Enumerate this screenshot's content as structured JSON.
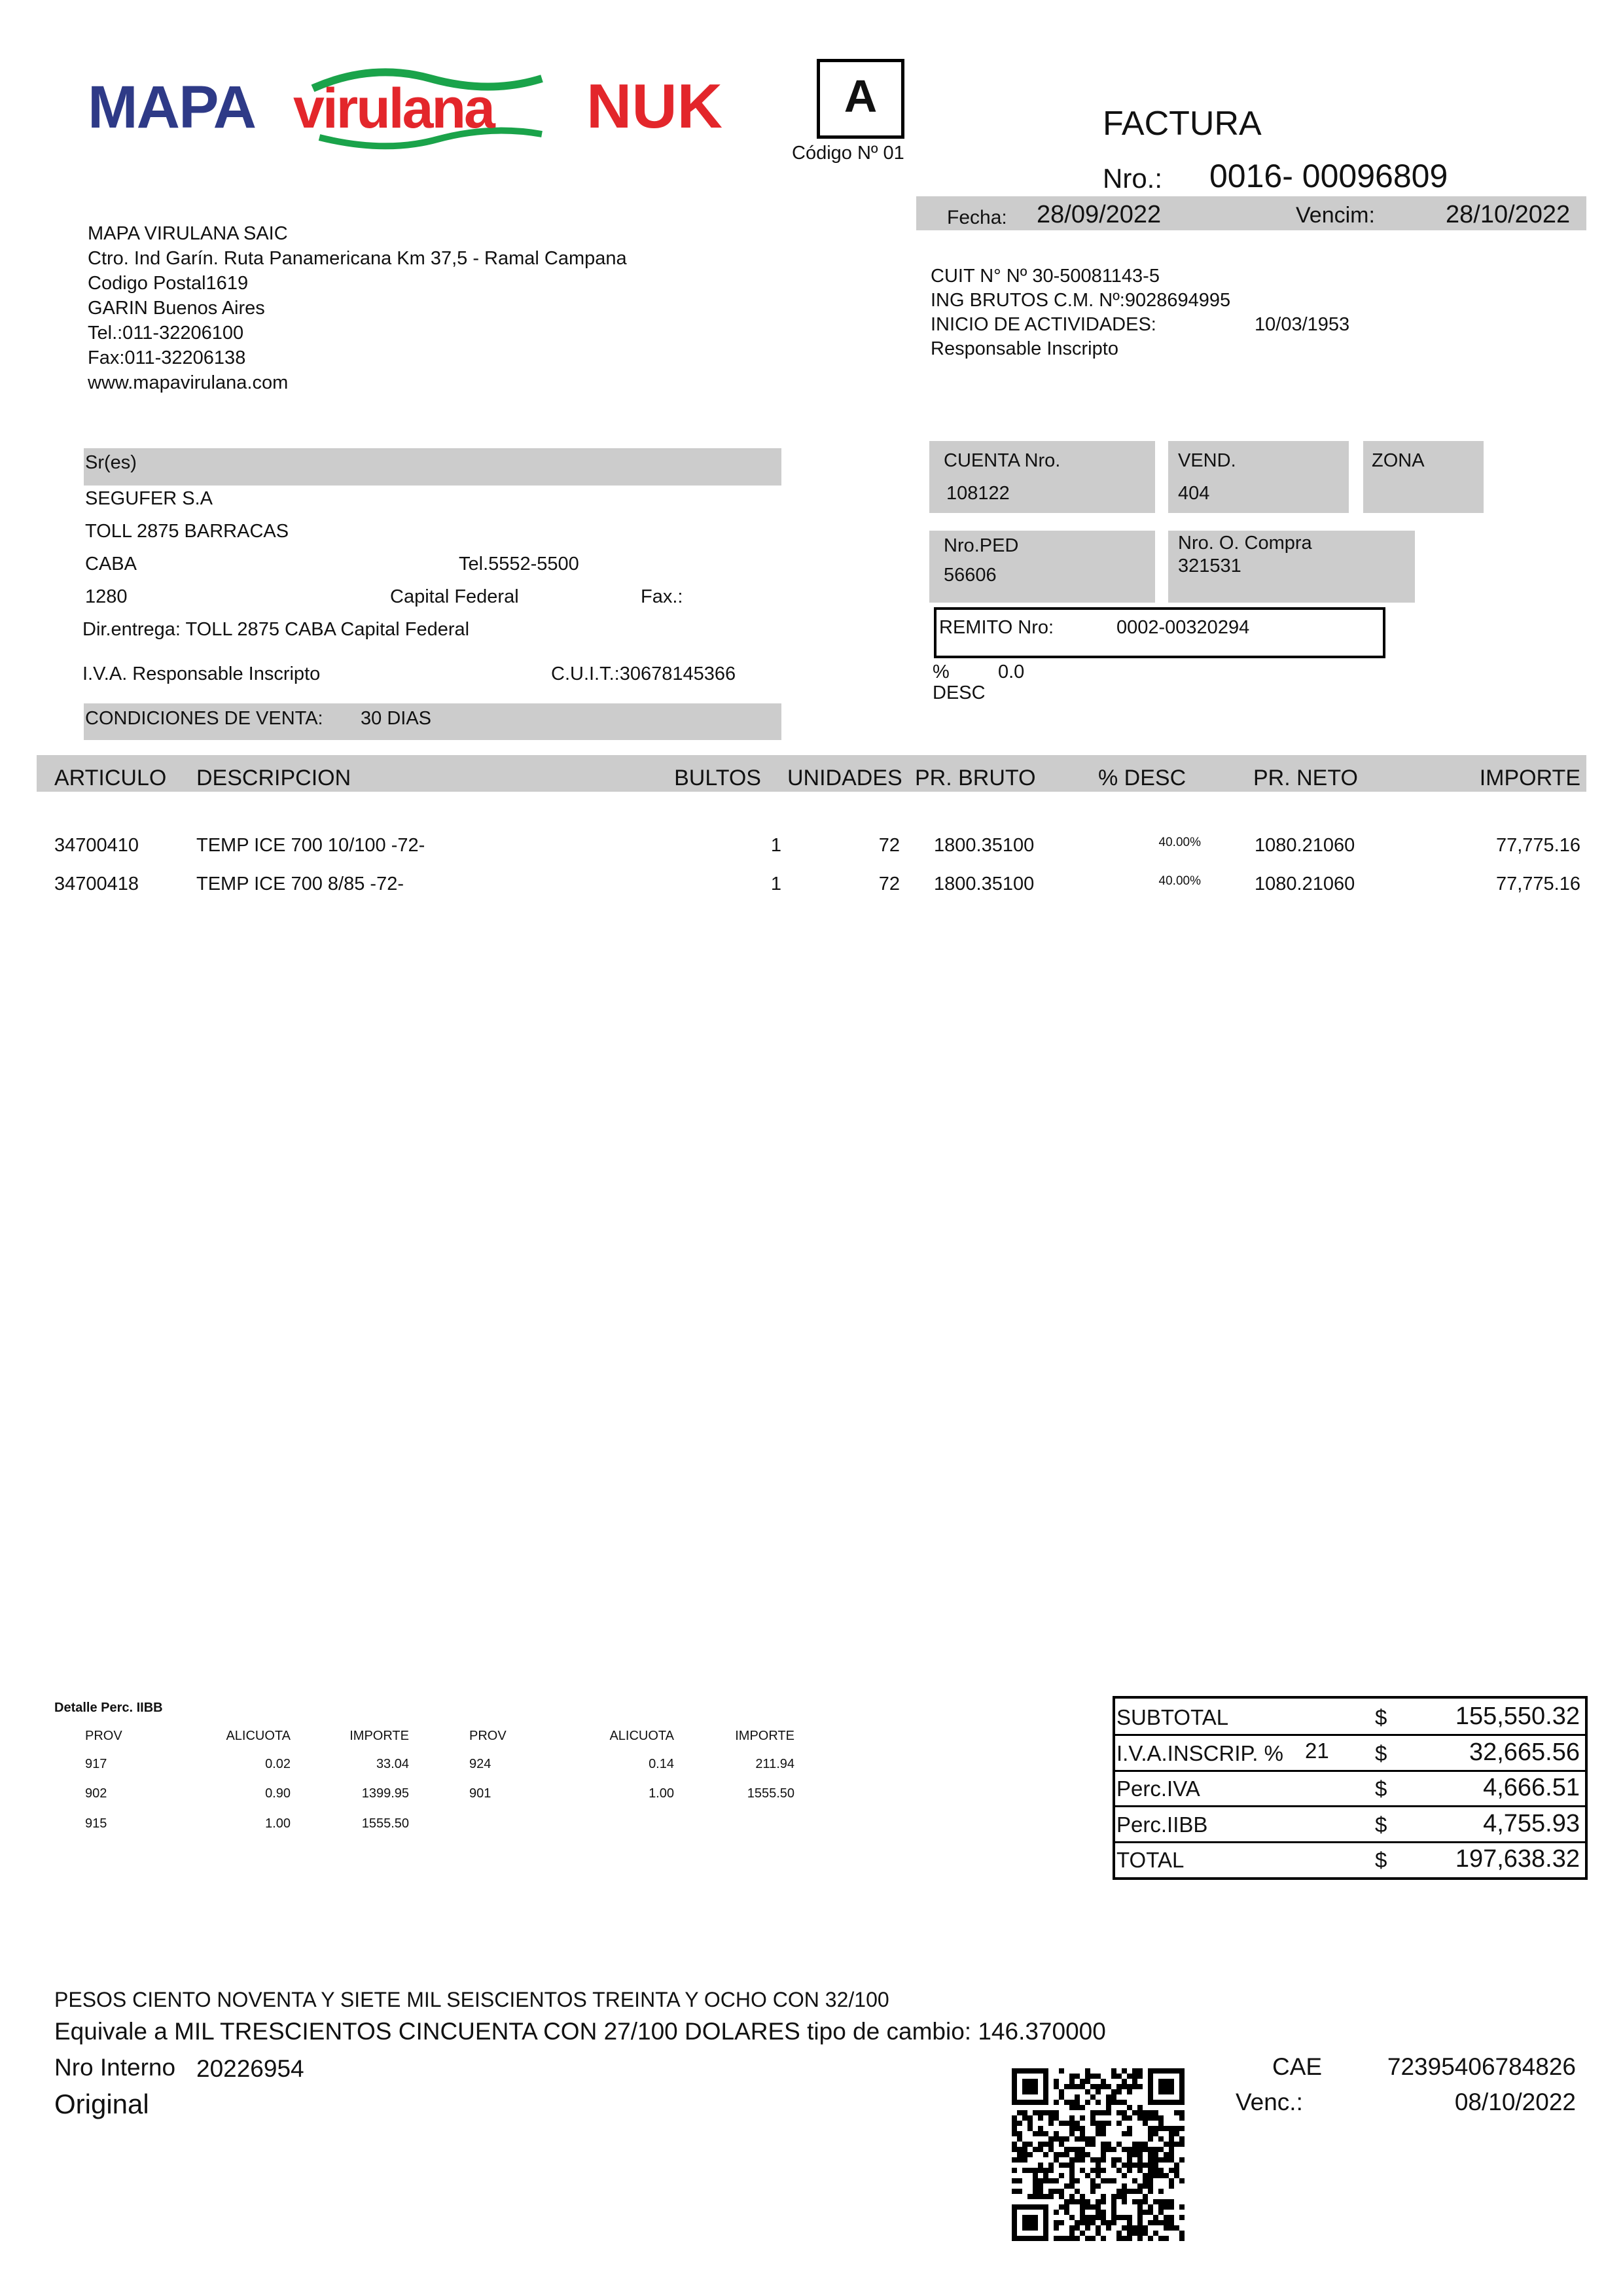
{
  "brand": {
    "logos": [
      "MAPA",
      "virulana",
      "NUK"
    ],
    "colors": {
      "mapa": "#2e3a87",
      "virulana": "#e3262b",
      "wave": "#1aa34a",
      "nuk": "#e3262b",
      "band": "#cccccc"
    }
  },
  "doc_type": {
    "letter": "A",
    "code": "Código Nº 01"
  },
  "header": {
    "title": "FACTURA",
    "number_label": "Nro.:",
    "number_prefix": "0016-",
    "number": "00096809",
    "fecha_label": "Fecha:",
    "fecha": "28/09/2022",
    "vencim_label": "Vencim:",
    "vencim": "28/10/2022"
  },
  "company": {
    "lines": [
      "MAPA VIRULANA SAIC",
      "Ctro. Ind Garín. Ruta Panamericana Km 37,5 - Ramal Campana",
      "Codigo Postal1619",
      "GARIN Buenos Aires",
      "Tel.:011-32206100",
      "Fax:011-32206138",
      "www.mapavirulana.com"
    ],
    "cuit": "CUIT N° Nº 30-50081143-5",
    "ing_brutos": "ING BRUTOS C.M. Nº:9028694995",
    "inicio_label": "INICIO DE ACTIVIDADES:",
    "inicio": "10/03/1953",
    "condicion": "Responsable Inscripto"
  },
  "customer": {
    "label": "Sr(es)",
    "name": "SEGUFER S.A",
    "address": "TOLL 2875 BARRACAS",
    "city": "CABA",
    "tel": "Tel.5552-5500",
    "postal": "1280",
    "province": "Capital Federal",
    "fax": "Fax.:",
    "delivery": "Dir.entrega: TOLL 2875 CABA Capital Federal",
    "iva": "I.V.A.  Responsable Inscripto",
    "cuit": "C.U.I.T.:30678145366",
    "conditions_label": "CONDICIONES DE VENTA:",
    "conditions": "30 DIAS"
  },
  "refs": {
    "cuenta_label": "CUENTA Nro.",
    "cuenta": "108122",
    "vend_label": "VEND.",
    "vend": "404",
    "zona_label": "ZONA",
    "ped_label": "Nro.PED",
    "ped": "56606",
    "compra_label": "Nro. O. Compra",
    "compra": "321531",
    "remito_label": "REMITO Nro:",
    "remito": "0002-00320294",
    "desc_label_1": "%",
    "desc_label_2": "DESC",
    "desc": "0.0"
  },
  "items": {
    "headers": [
      "ARTICULO",
      "DESCRIPCION",
      "BULTOS",
      "UNIDADES",
      "PR. BRUTO",
      "% DESC",
      "PR. NETO",
      "IMPORTE"
    ],
    "rows": [
      [
        "34700410",
        "TEMP ICE 700 10/100 -72-",
        "1",
        "72",
        "1800.35100",
        "40.00%",
        "1080.21060",
        "77,775.16"
      ],
      [
        "34700418",
        "TEMP ICE 700 8/85 -72-",
        "1",
        "72",
        "1800.35100",
        "40.00%",
        "1080.21060",
        "77,775.16"
      ]
    ]
  },
  "perc_iibb": {
    "title": "Detalle Perc. IIBB",
    "headers": [
      "PROV",
      "ALICUOTA",
      "IMPORTE"
    ],
    "left": [
      [
        "917",
        "0.02",
        "33.04"
      ],
      [
        "902",
        "0.90",
        "1399.95"
      ],
      [
        "915",
        "1.00",
        "1555.50"
      ]
    ],
    "right": [
      [
        "924",
        "0.14",
        "211.94"
      ],
      [
        "901",
        "1.00",
        "1555.50"
      ]
    ]
  },
  "totals": {
    "rows": [
      {
        "label": "SUBTOTAL",
        "extra": "",
        "currency": "$",
        "value": "155,550.32"
      },
      {
        "label": "I.V.A.INSCRIP.  %",
        "extra": "21",
        "currency": "$",
        "value": "32,665.56"
      },
      {
        "label": "Perc.IVA",
        "extra": "",
        "currency": "$",
        "value": "4,666.51"
      },
      {
        "label": "Perc.IIBB",
        "extra": "",
        "currency": "$",
        "value": "4,755.93"
      },
      {
        "label": "TOTAL",
        "extra": "",
        "currency": "$",
        "value": "197,638.32"
      }
    ]
  },
  "footer": {
    "pesos": "PESOS  CIENTO NOVENTA Y SIETE MIL SEISCIENTOS TREINTA Y OCHO CON 32/100",
    "equivale": "Equivale a  MIL TRESCIENTOS CINCUENTA CON 27/100 DOLARES tipo de cambio: 146.370000",
    "interno_label": "Nro Interno",
    "interno": "20226954",
    "copy": "Original",
    "cae_label": "CAE",
    "cae": "72395406784826",
    "venc_label": "Venc.:",
    "venc": "08/10/2022",
    "qr_icon": "qr-code"
  }
}
